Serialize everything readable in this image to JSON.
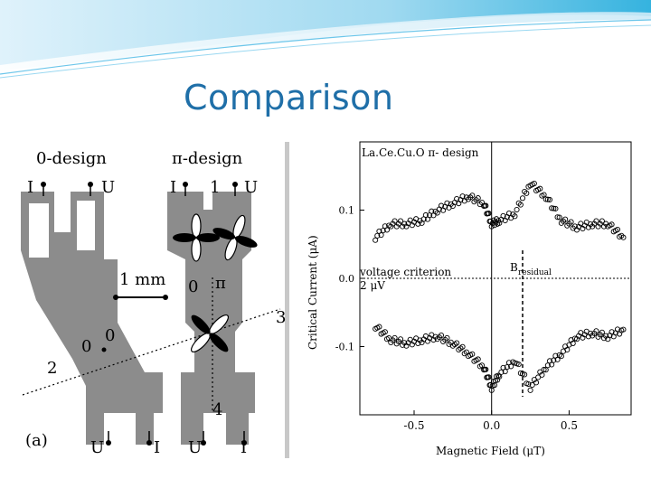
{
  "slide": {
    "title": "Comparison"
  },
  "left_figure": {
    "heading_zero": "0-design",
    "heading_pi": "π-design",
    "label_I_top_left": "I",
    "label_U_top_left": "U",
    "label_I_top_mid": "I",
    "label_1": "1",
    "label_U_top_right": "U",
    "scale_bar": "1 mm",
    "label_0_mid": "0",
    "label_pi_mid": "π",
    "label_3": "3",
    "label_0_left": "0",
    "label_0_left2": "0",
    "label_2": "2",
    "label_4": "4",
    "panel_label": "(a)",
    "label_U_bot_left": "U",
    "label_I_bot_left": "I",
    "label_U_bot_right": "U",
    "label_I_bot_right": "I"
  },
  "right_figure": {
    "chart_data": {
      "type": "scatter",
      "title": "La.Ce.Cu.O  π- design",
      "xlabel": "Magnetic Field (μT)",
      "ylabel": "Critical Current (μA)",
      "xlim": [
        -0.85,
        0.9
      ],
      "ylim": [
        -0.2,
        0.2
      ],
      "xticks": [
        "-0.5",
        "0.0",
        "0.5"
      ],
      "yticks": [
        "0.1",
        "0.0",
        "-0.1"
      ],
      "annotations": [
        "voltage criterion",
        "2 μV",
        "B",
        "residual"
      ],
      "vertical_line_x": 0.0,
      "dashed_line_x": 0.2,
      "series": [
        {
          "x": [
            -0.75,
            -0.65,
            -0.55,
            -0.45,
            -0.35,
            -0.25,
            -0.15,
            -0.05,
            0.0,
            0.05,
            0.15,
            0.25,
            0.35,
            0.45,
            0.55,
            0.65,
            0.75,
            0.85
          ],
          "y": [
            0.06,
            0.08,
            0.08,
            0.085,
            0.1,
            0.11,
            0.12,
            0.11,
            0.08,
            0.085,
            0.095,
            0.14,
            0.12,
            0.085,
            0.075,
            0.08,
            0.08,
            0.06
          ]
        },
        {
          "x": [
            -0.75,
            -0.65,
            -0.55,
            -0.45,
            -0.35,
            -0.25,
            -0.15,
            -0.05,
            0.0,
            0.05,
            0.15,
            0.25,
            0.35,
            0.45,
            0.55,
            0.65,
            0.75,
            0.85
          ],
          "y": [
            -0.07,
            -0.09,
            -0.095,
            -0.09,
            -0.085,
            -0.095,
            -0.11,
            -0.13,
            -0.16,
            -0.14,
            -0.12,
            -0.16,
            -0.13,
            -0.11,
            -0.085,
            -0.08,
            -0.085,
            -0.075
          ]
        }
      ]
    }
  }
}
